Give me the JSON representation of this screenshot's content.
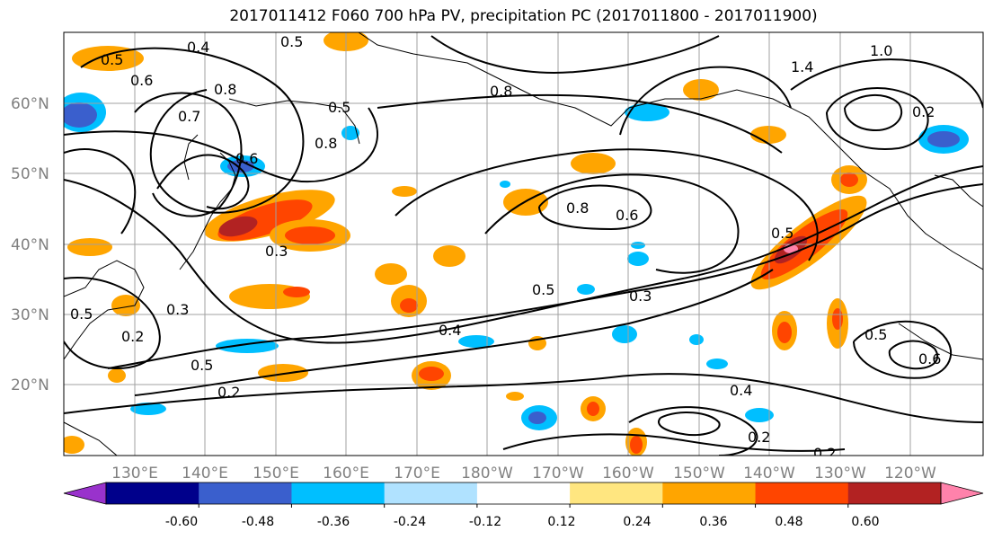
{
  "title": "2017011412 F060 700 hPa PV, precipitation PC (2017011800 - 2017011900)",
  "lat_labels": [
    "60°N",
    "50°N",
    "40°N",
    "30°N",
    "20°N"
  ],
  "lon_labels": [
    "130°E",
    "140°E",
    "150°E",
    "160°E",
    "170°E",
    "180°W",
    "170°W",
    "160°W",
    "150°W",
    "140°W",
    "130°W",
    "120°W"
  ],
  "colorbar": {
    "ticks": [
      "-0.60",
      "-0.48",
      "-0.36",
      "-0.24",
      "-0.12",
      "0.12",
      "0.24",
      "0.36",
      "0.48",
      "0.60"
    ],
    "colors": [
      "#9932cc",
      "#00008b",
      "#3a5fcd",
      "#00bfff",
      "#b0e2ff",
      "#ffffff",
      "#ffe680",
      "#ffa500",
      "#ff4500",
      "#b22222",
      "#ff82ab"
    ]
  },
  "contour_labels": [
    "0.5",
    "0.4",
    "0.5",
    "0.6",
    "0.7",
    "0.8",
    "0.6",
    "0.5",
    "0.8",
    "0.8",
    "0.3",
    "0.3",
    "0.8",
    "0.6",
    "0.5",
    "0.3",
    "0.4",
    "0.5",
    "0.2",
    "0.2",
    "0.4",
    "0.5",
    "0.6",
    "0.2",
    "1.0",
    "1.4",
    "0.5",
    "0.2",
    "0.5",
    "0.2"
  ]
}
